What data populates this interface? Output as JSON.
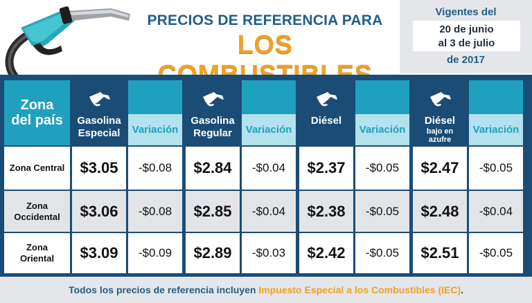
{
  "header": {
    "title_line1": "PRECIOS DE REFERENCIA PARA",
    "title_line2": "LOS COMBUSTIBLES",
    "dates": {
      "line1": "Vigentes del",
      "line2": "20 de junio",
      "line3": "al 3 de julio",
      "line4": "de 2017"
    }
  },
  "table": {
    "zone_header": [
      "Zona",
      "del país"
    ],
    "variation_label": "Variación",
    "fuels": [
      {
        "name": [
          "Gasolina",
          "Especial"
        ],
        "sub": ""
      },
      {
        "name": [
          "Gasolina",
          "Regular"
        ],
        "sub": ""
      },
      {
        "name": [
          "Diésel"
        ],
        "sub": ""
      },
      {
        "name": [
          "Diésel"
        ],
        "sub": "bajo en azufre"
      }
    ],
    "rows": [
      {
        "zone": [
          "Zona Central"
        ],
        "values": [
          "$3.05",
          "-$0.08",
          "$2.84",
          "-$0.04",
          "$2.37",
          "-$0.05",
          "$2.47",
          "-$0.05"
        ]
      },
      {
        "zone": [
          "Zona",
          "Occidental"
        ],
        "values": [
          "$3.06",
          "-$0.08",
          "$2.85",
          "-$0.04",
          "$2.38",
          "-$0.05",
          "$2.48",
          "-$0.04"
        ]
      },
      {
        "zone": [
          "Zona",
          "Oriental"
        ],
        "values": [
          "$3.09",
          "-$0.09",
          "$2.89",
          "-$0.03",
          "$2.42",
          "-$0.05",
          "$2.51",
          "-$0.05"
        ]
      }
    ]
  },
  "footer": {
    "text_before": "Todos los precios de referencia incluyen ",
    "highlight": "Impuesto Especial a los Combustibles (IEC)",
    "text_after": "."
  },
  "colors": {
    "navy": "#1b4c76",
    "teal": "#1fa1bd",
    "light_teal": "#b3e2ee",
    "orange": "#efa02a",
    "grey": "#e4e6e9"
  }
}
